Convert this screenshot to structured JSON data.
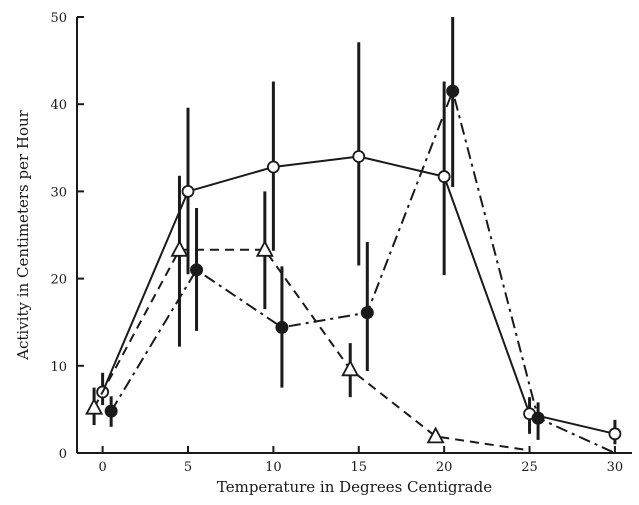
{
  "chart_data": {
    "type": "line",
    "xlabel": "Temperature in Degrees Centigrade",
    "ylabel": "Activity in Centimeters per Hour",
    "xlim": [
      -1.5,
      31
    ],
    "ylim": [
      0,
      50
    ],
    "x_ticks": [
      0,
      5,
      10,
      15,
      20,
      25,
      30
    ],
    "y_ticks": [
      0,
      10,
      20,
      30,
      40,
      50
    ],
    "x_tick_labels": [
      "0",
      "5",
      "10",
      "15",
      "20",
      "25",
      "30"
    ],
    "y_tick_labels": [
      "0",
      "10",
      "20",
      "30",
      "40",
      "50"
    ],
    "grid": false,
    "legend": "none",
    "series": [
      {
        "marker": "open-circle",
        "line_style": "solid",
        "x": [
          0,
          5,
          10,
          15,
          20,
          25,
          30
        ],
        "y": [
          7,
          30,
          32.8,
          34,
          31.7,
          4.5,
          2.2
        ],
        "y_low": [
          5.5,
          20.5,
          23.2,
          21.5,
          20.4,
          2.2,
          1
        ],
        "y_high": [
          9.2,
          39.6,
          42.6,
          47.1,
          42.6,
          6.4,
          3.8
        ]
      },
      {
        "marker": "filled-circle",
        "line_style": "dash-dot",
        "x": [
          0.5,
          5.5,
          10.5,
          15.5,
          20.5,
          25.5,
          30
        ],
        "y": [
          4.8,
          21,
          14.4,
          16.1,
          41.5,
          4,
          0
        ],
        "y_low": [
          3,
          14,
          7.5,
          9.4,
          30.5,
          1.5,
          null
        ],
        "y_high": [
          6.5,
          28.1,
          21.4,
          24.2,
          50,
          5.8,
          null
        ]
      },
      {
        "marker": "open-triangle",
        "line_style": "dashed",
        "x": [
          -0.5,
          4.5,
          9.5,
          14.5,
          19.5,
          25
        ],
        "y": [
          5.2,
          23.3,
          23.3,
          9.6,
          1.9,
          0.3
        ],
        "y_low": [
          3.2,
          12.2,
          16.5,
          6.4,
          null,
          null
        ],
        "y_high": [
          7.5,
          31.8,
          30,
          12.6,
          null,
          null
        ]
      }
    ]
  }
}
